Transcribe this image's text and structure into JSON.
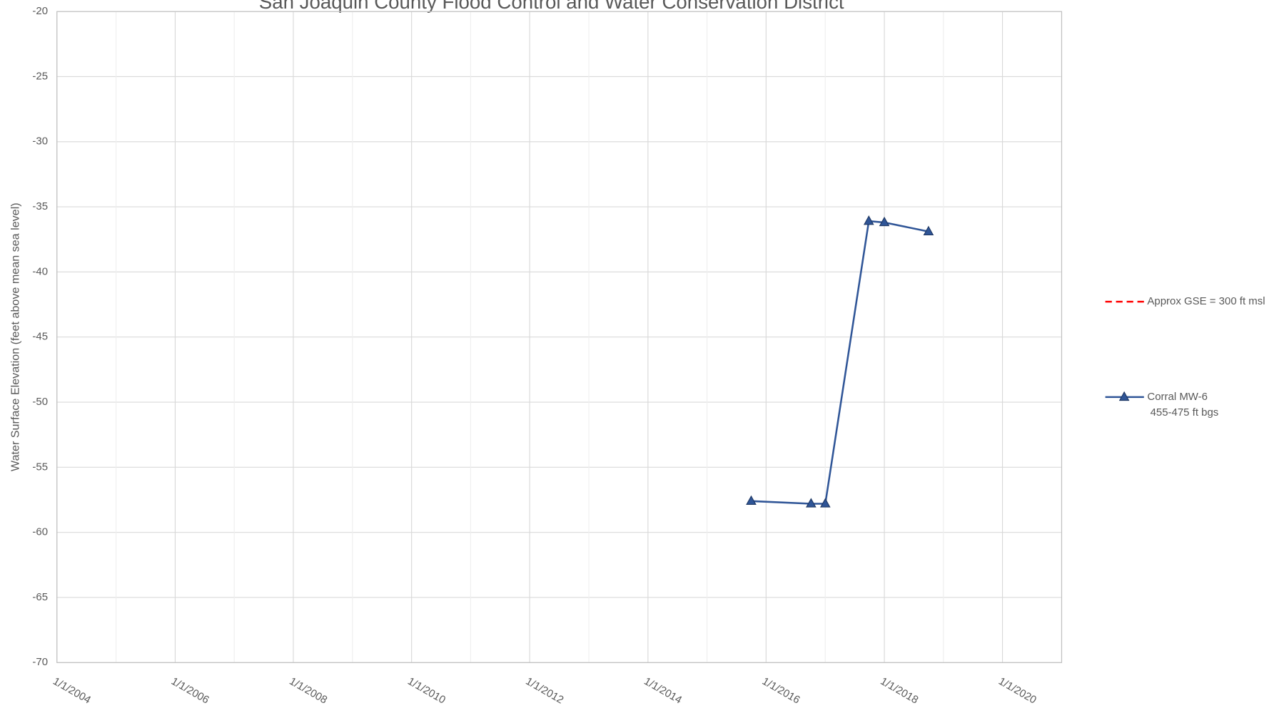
{
  "chart_data": {
    "type": "line",
    "title": "San Joaquin County Flood Control and Water Conservation District",
    "y_label": "Water Surface Elevation (feet above mean sea level)",
    "x": [
      "10/1/2015",
      "10/5/2016",
      "1/1/2017",
      "9/27/2017",
      "1/1/2018",
      "10/1/2018"
    ],
    "series": [
      {
        "name": "Approx GSE = 300 ft msl",
        "color": "#ff0000",
        "dash": true,
        "values": [
          null,
          null,
          null,
          null,
          null,
          null
        ]
      },
      {
        "name": "Corral MW-6\n 455-475 ft bgs",
        "color": "#2f5597",
        "marker": "triangle",
        "values": [
          -57.6,
          -57.8,
          -57.8,
          -36.1,
          -36.2,
          -36.9
        ]
      }
    ],
    "xlim": [
      "1/1/2004",
      "1/1/2021"
    ],
    "xticks": [
      "1/1/2004",
      "1/1/2006",
      "1/1/2008",
      "1/1/2010",
      "1/1/2012",
      "1/1/2014",
      "1/1/2016",
      "1/1/2018",
      "1/1/2020"
    ],
    "ylim": [
      -70,
      -20
    ],
    "yticks": [
      -70,
      -65,
      -60,
      -55,
      -50,
      -45,
      -40,
      -35,
      -30,
      -25,
      -20
    ],
    "grid": true,
    "legend": "right"
  }
}
